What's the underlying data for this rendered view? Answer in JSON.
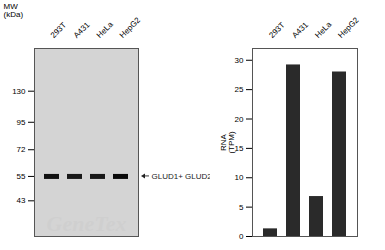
{
  "chart_data": [
    {
      "type": "blot",
      "categories": [
        "293T",
        "A431",
        "HeLa",
        "HepG2"
      ],
      "values": [
        55,
        55,
        55,
        55
      ],
      "colors": [
        "#111111",
        "#181818",
        "#181818",
        "#0a0a0a"
      ],
      "ylabel": "MW\n(kDa)",
      "log": "y",
      "ylim": [
        30,
        200
      ],
      "yticks": [
        130,
        95,
        72,
        55,
        43
      ],
      "annotation": "GLUD1+ GLUD2",
      "watermark": "GeneTex"
    },
    {
      "type": "bar",
      "categories": [
        "293T",
        "A431",
        "HeLa",
        "HepG2"
      ],
      "values": [
        1.3,
        29.2,
        6.8,
        28.0
      ],
      "color": "#2a2a2a",
      "ylabel": "RNA\n(TPM)",
      "ylim": [
        0,
        32
      ],
      "yticks": [
        0,
        5,
        10,
        15,
        20,
        25,
        30
      ]
    }
  ]
}
